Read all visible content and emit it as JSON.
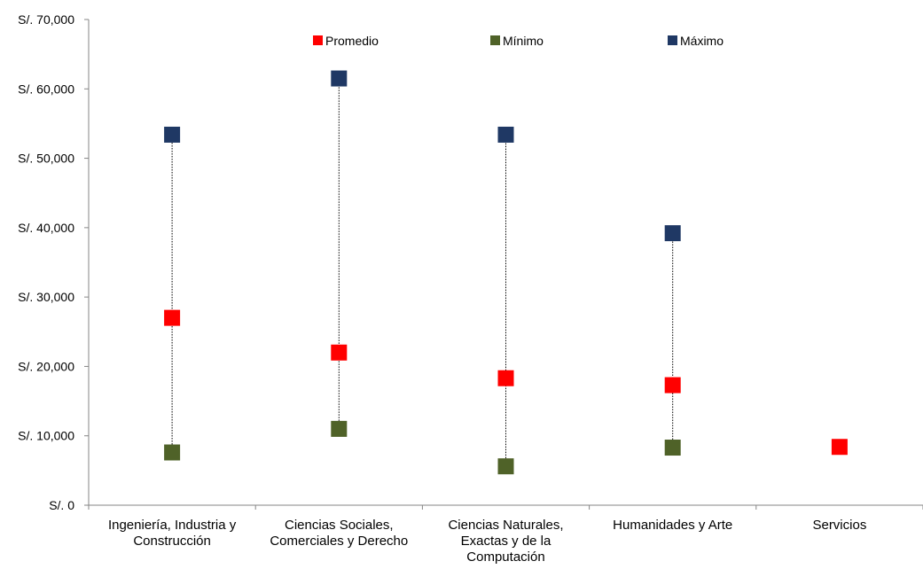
{
  "chart_data": {
    "type": "scatter",
    "title": "",
    "xlabel": "",
    "ylabel": "",
    "ylim": [
      0,
      70000
    ],
    "y_ticks": [
      {
        "value": 0,
        "label": "S/. 0"
      },
      {
        "value": 10000,
        "label": "S/. 10,000"
      },
      {
        "value": 20000,
        "label": "S/. 20,000"
      },
      {
        "value": 30000,
        "label": "S/. 30,000"
      },
      {
        "value": 40000,
        "label": "S/. 40,000"
      },
      {
        "value": 50000,
        "label": "S/. 50,000"
      },
      {
        "value": 60000,
        "label": "S/. 60,000"
      },
      {
        "value": 70000,
        "label": "S/. 70,000"
      }
    ],
    "categories": [
      [
        "Ingeniería, Industria y",
        "Construcción"
      ],
      [
        "Ciencias Sociales,",
        "Comerciales y Derecho"
      ],
      [
        "Ciencias Naturales,",
        "Exactas y de la",
        "Computación"
      ],
      [
        "Humanidades y Arte"
      ],
      [
        "Servicios"
      ]
    ],
    "series": [
      {
        "name": "Promedio",
        "color": "#ff0000",
        "values": [
          27000,
          22000,
          18300,
          17300,
          8400
        ]
      },
      {
        "name": "Mínimo",
        "color": "#4f6228",
        "values": [
          7600,
          11000,
          5600,
          8300,
          null
        ]
      },
      {
        "name": "Máximo",
        "color": "#1f3864",
        "values": [
          53400,
          61500,
          53400,
          39200,
          null
        ]
      }
    ],
    "range_lines": true,
    "grid": false,
    "legend_position": "top"
  }
}
